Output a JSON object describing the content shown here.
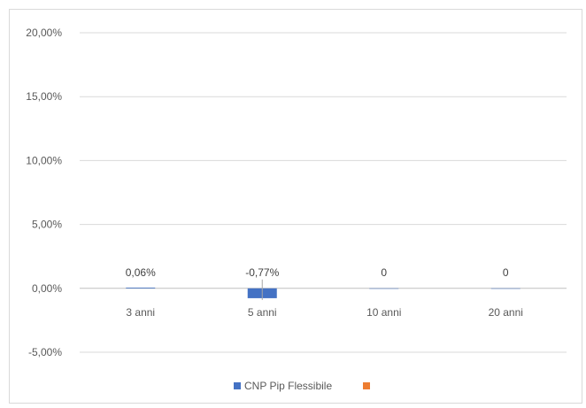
{
  "chart_data": {
    "type": "bar",
    "title": "",
    "xlabel": "",
    "ylabel": "",
    "categories": [
      "3 anni",
      "5 anni",
      "10 anni",
      "20 anni"
    ],
    "series": [
      {
        "name": "CNP Pip Flessibile",
        "color": "#4472c4",
        "values": [
          0.06,
          -0.77,
          0,
          0
        ],
        "labels": [
          "0,06%",
          "-0,77%",
          "0",
          "0"
        ]
      },
      {
        "name": "",
        "color": "#ed7d31",
        "values": [
          null,
          null,
          null,
          null
        ]
      }
    ],
    "ylim": [
      -5,
      20
    ],
    "yticks": [
      20,
      15,
      10,
      5,
      0,
      -5
    ],
    "ytick_labels": [
      "20,00%",
      "15,00%",
      "10,00%",
      "5,00%",
      "0,00%",
      "-5,00%"
    ],
    "grid": true,
    "legend_position": "bottom"
  }
}
